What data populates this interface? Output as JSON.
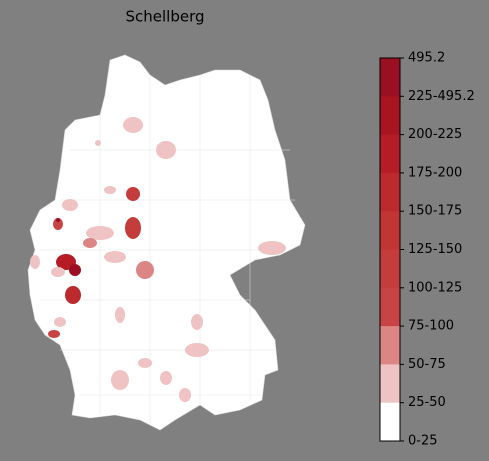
{
  "title": "Schellberg",
  "colorbar": {
    "labels": [
      "495.2",
      "225-495.2",
      "200-225",
      "175-200",
      "150-175",
      "125-150",
      "100-125",
      "75-100",
      "50-75",
      "25-50",
      "0-25"
    ],
    "colors": [
      "#9b0f23",
      "#a8141f",
      "#b51c25",
      "#bc2a2e",
      "#c13535",
      "#c43c3c",
      "#c84444",
      "#dc8585",
      "#efc3c3",
      "#ffffff"
    ]
  }
}
